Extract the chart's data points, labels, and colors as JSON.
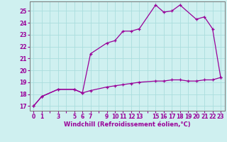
{
  "xlabel": "Windchill (Refroidissement éolien,°C)",
  "background_color": "#cff0f0",
  "line_color": "#990099",
  "grid_color": "#aadddd",
  "xlim": [
    -0.5,
    23.5
  ],
  "ylim": [
    16.6,
    25.8
  ],
  "yticks": [
    17,
    18,
    19,
    20,
    21,
    22,
    23,
    24,
    25
  ],
  "xtick_positions": [
    0,
    1,
    2,
    3,
    4,
    5,
    6,
    7,
    8,
    9,
    10,
    11,
    12,
    13,
    14,
    15,
    16,
    17,
    18,
    19,
    20,
    21,
    22,
    23
  ],
  "xtick_labels": [
    "0",
    "1",
    "",
    "3",
    "",
    "5",
    "6",
    "7",
    "",
    "9",
    "10",
    "11",
    "12",
    "13",
    "",
    "15",
    "16",
    "17",
    "18",
    "19",
    "20",
    "21",
    "22",
    "23"
  ],
  "series1_x": [
    0,
    1,
    3,
    5,
    6,
    7,
    9,
    10,
    11,
    12,
    13,
    15,
    16,
    17,
    18,
    20,
    21,
    22,
    23
  ],
  "series1_y": [
    17.0,
    17.8,
    18.4,
    18.4,
    18.1,
    21.4,
    22.3,
    22.5,
    23.3,
    23.3,
    23.5,
    25.5,
    24.9,
    25.0,
    25.5,
    24.3,
    24.5,
    23.5,
    19.4
  ],
  "series2_x": [
    0,
    1,
    3,
    5,
    6,
    7,
    9,
    10,
    11,
    12,
    13,
    15,
    16,
    17,
    18,
    19,
    20,
    21,
    22,
    23
  ],
  "series2_y": [
    17.0,
    17.8,
    18.4,
    18.4,
    18.1,
    18.3,
    18.6,
    18.7,
    18.8,
    18.9,
    19.0,
    19.1,
    19.1,
    19.2,
    19.2,
    19.1,
    19.1,
    19.2,
    19.2,
    19.4
  ],
  "marker": "+",
  "markersize": 3,
  "linewidth": 0.9,
  "label_fontsize": 6,
  "tick_fontsize": 5.5
}
